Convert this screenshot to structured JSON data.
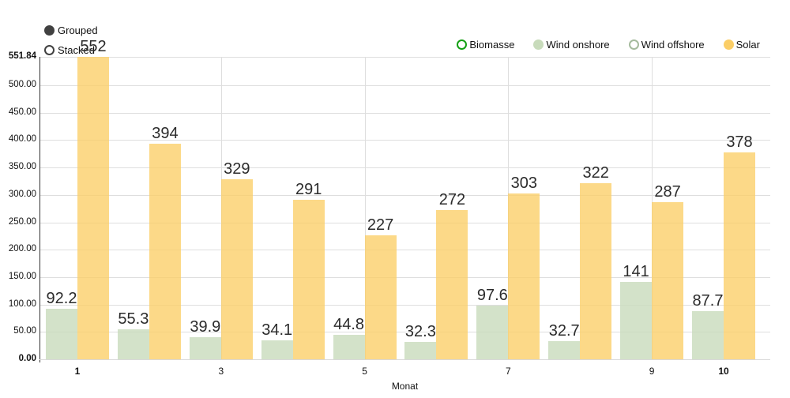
{
  "controls": {
    "grouped_label": "Grouped",
    "stacked_label": "Stacked",
    "selected": "Grouped"
  },
  "legend": {
    "items": [
      {
        "label": "Biomasse",
        "active": false,
        "color": "#14a014"
      },
      {
        "label": "Wind onshore",
        "active": true,
        "color": "#c8dbbb"
      },
      {
        "label": "Wind offshore",
        "active": false,
        "color": "#a5bb9d"
      },
      {
        "label": "Solar",
        "active": true,
        "color": "#fbce67"
      }
    ]
  },
  "chart_data": {
    "type": "bar",
    "mode": "grouped",
    "title": "",
    "xlabel": "Monat",
    "ylabel": "",
    "ylim": [
      0,
      551.84
    ],
    "x": [
      1,
      2,
      3,
      4,
      5,
      6,
      7,
      8,
      9,
      10
    ],
    "x_ticks": [
      {
        "text": "1",
        "month": 1,
        "bold": true
      },
      {
        "text": "3",
        "month": 3,
        "bold": false
      },
      {
        "text": "5",
        "month": 5,
        "bold": false
      },
      {
        "text": "7",
        "month": 7,
        "bold": false
      },
      {
        "text": "9",
        "month": 9,
        "bold": false
      },
      {
        "text": "10",
        "month": 10,
        "bold": true
      }
    ],
    "y_ticks": [
      {
        "text": "551.84",
        "value": 551.84,
        "bold": true
      },
      {
        "text": "500.00",
        "value": 500,
        "bold": false
      },
      {
        "text": "450.00",
        "value": 450,
        "bold": false
      },
      {
        "text": "400.00",
        "value": 400,
        "bold": false
      },
      {
        "text": "350.00",
        "value": 350,
        "bold": false
      },
      {
        "text": "300.00",
        "value": 300,
        "bold": false
      },
      {
        "text": "250.00",
        "value": 250,
        "bold": false
      },
      {
        "text": "200.00",
        "value": 200,
        "bold": false
      },
      {
        "text": "150.00",
        "value": 150,
        "bold": false
      },
      {
        "text": "100.00",
        "value": 100,
        "bold": false
      },
      {
        "text": "50.00",
        "value": 50,
        "bold": false
      },
      {
        "text": "0.00",
        "value": 0,
        "bold": true
      }
    ],
    "grid": true,
    "legend_position": "top-right",
    "series": [
      {
        "name": "Wind onshore",
        "fill": "rgba(200,219,187,0.8)",
        "values": [
          92.2,
          55.3,
          39.9,
          34.1,
          44.8,
          32.3,
          97.6,
          32.7,
          141,
          87.7
        ],
        "labels": [
          "92.2",
          "55.3",
          "39.9",
          "34.1",
          "44.8",
          "32.3",
          "97.6",
          "32.7",
          "141",
          "87.7"
        ]
      },
      {
        "name": "Solar",
        "fill": "rgba(251,206,103,0.78)",
        "values": [
          552,
          394,
          329,
          291,
          227,
          272,
          303,
          322,
          287,
          378
        ],
        "labels": [
          "552",
          "394",
          "329",
          "291",
          "227",
          "272",
          "303",
          "322",
          "287",
          "378"
        ]
      }
    ]
  }
}
